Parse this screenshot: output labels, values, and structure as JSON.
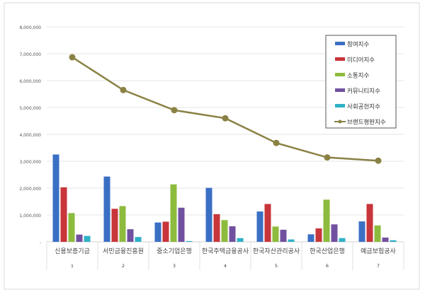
{
  "chart_data": {
    "type": "bar",
    "title": "",
    "xlabel": "",
    "ylabel": "",
    "ylim": [
      0,
      8000000
    ],
    "yticks": [
      "-",
      "1,000,000",
      "2,000,000",
      "3,000,000",
      "4,000,000",
      "5,000,000",
      "6,000,000",
      "7,000,000",
      "8,000,000"
    ],
    "categories": [
      "신용보증기금",
      "서민금융진흥원",
      "중소기업은행",
      "한국주택금융공사",
      "한국자산관리공사",
      "한국산업은행",
      "예금보험공사"
    ],
    "ranks": [
      "1",
      "2",
      "3",
      "4",
      "5",
      "6",
      "7"
    ],
    "grid": true,
    "legend_position": "top-right",
    "series": [
      {
        "name": "참여지수",
        "type": "bar",
        "color": "#3a6fc4",
        "values": [
          3250000,
          2430000,
          720000,
          2010000,
          1130000,
          280000,
          760000
        ]
      },
      {
        "name": "미디어지수",
        "type": "bar",
        "color": "#c8353a",
        "values": [
          2030000,
          1230000,
          750000,
          1030000,
          1410000,
          500000,
          1410000
        ]
      },
      {
        "name": "소통지수",
        "type": "bar",
        "color": "#8dbb3e",
        "values": [
          1070000,
          1330000,
          2140000,
          810000,
          570000,
          1570000,
          610000
        ]
      },
      {
        "name": "커뮤니티지수",
        "type": "bar",
        "color": "#7150a0",
        "values": [
          270000,
          470000,
          1270000,
          580000,
          450000,
          650000,
          160000
        ]
      },
      {
        "name": "사회공헌지수",
        "type": "bar",
        "color": "#2fb0c8",
        "values": [
          220000,
          180000,
          30000,
          140000,
          90000,
          140000,
          60000
        ]
      },
      {
        "name": "브랜드평판지수",
        "type": "line",
        "color": "#8a8144",
        "values": [
          6870000,
          5650000,
          4900000,
          4600000,
          3680000,
          3140000,
          3020000
        ]
      }
    ]
  }
}
